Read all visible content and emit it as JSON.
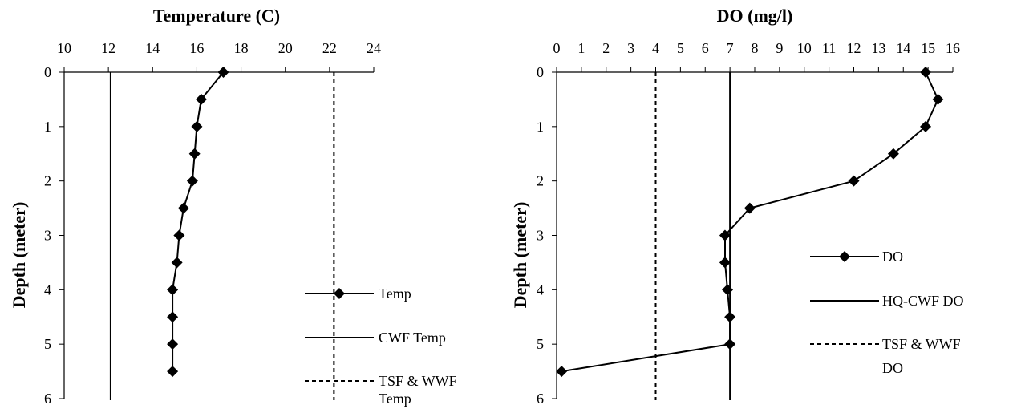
{
  "chart_data": [
    {
      "type": "line",
      "title": "Temperature (C)",
      "xlabel": "Temperature (C)",
      "ylabel": "Depth (meter)",
      "xlim": [
        10,
        24
      ],
      "ylim": [
        0,
        6
      ],
      "x_ticks": [
        "10",
        "12",
        "14",
        "16",
        "18",
        "20",
        "22",
        "24"
      ],
      "y_ticks": [
        "0",
        "1",
        "2",
        "3",
        "4",
        "5",
        "6"
      ],
      "x_axis_position": "top",
      "y_axis_inverted": true,
      "legend_position": "bottom-right",
      "series": [
        {
          "name": "Temp",
          "style": "solid-diamond-markers",
          "points": [
            {
              "depth": 0,
              "value": 17.2
            },
            {
              "depth": 0.5,
              "value": 16.2
            },
            {
              "depth": 1,
              "value": 16.0
            },
            {
              "depth": 1.5,
              "value": 15.9
            },
            {
              "depth": 2,
              "value": 15.8
            },
            {
              "depth": 2.5,
              "value": 15.4
            },
            {
              "depth": 3,
              "value": 15.2
            },
            {
              "depth": 3.5,
              "value": 15.1
            },
            {
              "depth": 4,
              "value": 14.9
            },
            {
              "depth": 4.5,
              "value": 14.9
            },
            {
              "depth": 5,
              "value": 14.9
            },
            {
              "depth": 5.5,
              "value": 14.9
            }
          ]
        },
        {
          "name": "CWF Temp",
          "style": "solid",
          "constant_value": 12.1
        },
        {
          "name": "TSF & WWF Temp",
          "style": "dashed",
          "constant_value": 22.2
        }
      ]
    },
    {
      "type": "line",
      "title": "DO (mg/l)",
      "xlabel": "DO (mg/l)",
      "ylabel": "Depth (meter)",
      "xlim": [
        0,
        16
      ],
      "ylim": [
        0,
        6
      ],
      "x_ticks": [
        "0",
        "1",
        "2",
        "3",
        "4",
        "5",
        "6",
        "7",
        "8",
        "9",
        "10",
        "11",
        "12",
        "13",
        "14",
        "15",
        "16"
      ],
      "y_ticks": [
        "0",
        "1",
        "2",
        "3",
        "4",
        "5",
        "6"
      ],
      "x_axis_position": "top",
      "y_axis_inverted": true,
      "legend_position": "right",
      "series": [
        {
          "name": "DO",
          "style": "solid-diamond-markers",
          "points": [
            {
              "depth": 0,
              "value": 14.9
            },
            {
              "depth": 0.5,
              "value": 15.4
            },
            {
              "depth": 1,
              "value": 14.9
            },
            {
              "depth": 1.5,
              "value": 13.6
            },
            {
              "depth": 2,
              "value": 12.0
            },
            {
              "depth": 2.5,
              "value": 7.8
            },
            {
              "depth": 3,
              "value": 6.8
            },
            {
              "depth": 3.5,
              "value": 6.8
            },
            {
              "depth": 4,
              "value": 6.9
            },
            {
              "depth": 4.5,
              "value": 7.0
            },
            {
              "depth": 5,
              "value": 7.0
            },
            {
              "depth": 5.5,
              "value": 0.2
            }
          ]
        },
        {
          "name": "HQ-CWF DO",
          "style": "solid",
          "constant_value": 7
        },
        {
          "name": "TSF & WWF DO",
          "style": "dashed",
          "constant_value": 4
        }
      ]
    }
  ]
}
